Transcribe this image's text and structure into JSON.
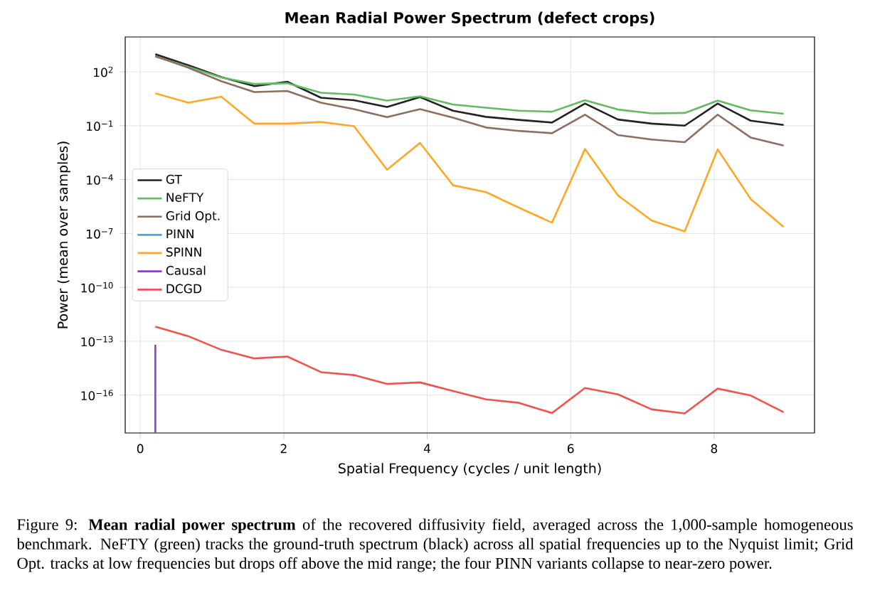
{
  "chart_data": {
    "type": "line",
    "title": "Mean Radial Power Spectrum (defect crops)",
    "xlabel": "Spatial Frequency (cycles / unit length)",
    "ylabel": "Power (mean over samples)",
    "x": [
      0.21,
      0.67,
      1.13,
      1.59,
      2.05,
      2.52,
      2.98,
      3.44,
      3.9,
      4.36,
      4.82,
      5.28,
      5.74,
      6.2,
      6.66,
      7.13,
      7.59,
      8.05,
      8.51,
      8.97
    ],
    "series": [
      {
        "name": "GT",
        "color": "#222222",
        "values": [
          950,
          230,
          51,
          16,
          28,
          3.6,
          2.6,
          1.1,
          3.9,
          0.68,
          0.31,
          0.21,
          0.15,
          1.7,
          0.22,
          0.13,
          0.1,
          1.7,
          0.19,
          0.11
        ]
      },
      {
        "name": "NeFTY",
        "color": "#62bb62",
        "values": [
          710,
          190,
          48,
          21,
          23,
          6.8,
          5.4,
          2.5,
          4.3,
          1.5,
          1.0,
          0.68,
          0.6,
          2.6,
          0.79,
          0.48,
          0.51,
          2.5,
          0.71,
          0.46
        ]
      },
      {
        "name": "Grid Opt.",
        "color": "#8d6e63",
        "values": [
          740,
          170,
          30,
          7.4,
          8.5,
          1.9,
          0.83,
          0.3,
          0.83,
          0.28,
          0.079,
          0.051,
          0.038,
          0.41,
          0.03,
          0.017,
          0.012,
          0.41,
          0.022,
          0.0078
        ]
      },
      {
        "name": "PINN",
        "color": "#42a5f5",
        "values": [
          null,
          null,
          null,
          null,
          null,
          null,
          null,
          null,
          null,
          null,
          null,
          null,
          null,
          null,
          null,
          null,
          null,
          null,
          null,
          null
        ]
      },
      {
        "name": "SPINN",
        "color": "#ffa726",
        "values": [
          6.3,
          1.9,
          4.1,
          0.13,
          0.13,
          0.16,
          0.093,
          0.00035,
          0.011,
          4.8e-05,
          2e-05,
          2.7e-06,
          4e-07,
          0.005,
          1.3e-05,
          5.2e-07,
          1.3e-07,
          0.0048,
          8.3e-06,
          2.3e-07
        ]
      },
      {
        "name": "Causal",
        "color": "#8e3fc9",
        "x": [
          0.21,
          0.21
        ],
        "values": [
          6.3e-14,
          7.8e-19
        ]
      },
      {
        "name": "DCGD",
        "color": "#ef5350",
        "values": [
          6.5e-13,
          1.9e-13,
          3.3e-14,
          1.1e-14,
          1.4e-14,
          1.9e-15,
          1.3e-15,
          4.2e-16,
          5.1e-16,
          1.7e-16,
          5.8e-17,
          3.7e-17,
          1e-17,
          2.5e-16,
          1.1e-16,
          1.6e-17,
          9.5e-18,
          2.3e-16,
          9.5e-17,
          1.1e-17
        ]
      }
    ],
    "log": "y",
    "grid": true,
    "legend": "left",
    "marker": "none",
    "line_style": "solid",
    "xlim": [
      -0.21,
      9.4
    ],
    "ylim": [
      7.8e-19,
      8700
    ],
    "xticks": [
      0,
      2,
      4,
      6,
      8
    ],
    "yticks": [
      {
        "value": 100,
        "label": "10$^{2}$"
      },
      {
        "value": 0.1,
        "label": "10$^{−1}$"
      },
      {
        "value": 0.0001,
        "label": "10$^{−4}$"
      },
      {
        "value": 1e-07,
        "label": "10$^{−7}$"
      },
      {
        "value": 1e-10,
        "label": "10$^{−10}$"
      },
      {
        "value": 1e-13,
        "label": "10$^{−13}$"
      },
      {
        "value": 1e-16,
        "label": "10$^{−16}$"
      }
    ],
    "annotations": [
      "Figure 9: **Mean radial power spectrum** of the recovered diffusivity field, averaged across the 1,000-sample homogeneous benchmark. NeFTY (green) tracks the ground-truth spectrum (black) across all spatial frequencies up to the Nyquist limit; Grid Opt. tracks at low frequencies but drops off above the mid range; the four PINN variants collapse to near-zero power."
    ]
  }
}
